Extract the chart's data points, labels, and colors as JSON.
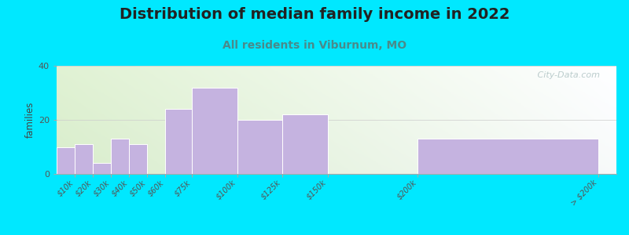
{
  "title": "Distribution of median family income in 2022",
  "subtitle": "All residents in Viburnum, MO",
  "ylabel": "families",
  "bar_color": "#c5b3e0",
  "bar_edgecolor": "#ffffff",
  "background_outer": "#00e8ff",
  "ylim": [
    0,
    40
  ],
  "yticks": [
    0,
    20,
    40
  ],
  "watermark": " City-Data.com",
  "title_fontsize": 14,
  "subtitle_fontsize": 10,
  "subtitle_color": "#4a8a8a",
  "title_color": "#222222",
  "hist_edges": [
    0,
    10,
    20,
    30,
    40,
    50,
    60,
    75,
    100,
    125,
    150,
    200,
    300
  ],
  "hist_values": [
    10,
    11,
    4,
    13,
    11,
    0,
    24,
    32,
    20,
    22,
    0,
    13
  ],
  "tick_labels": [
    "$10k",
    "$20k",
    "$30k",
    "$40k",
    "$50k",
    "$60k",
    "$75k",
    "$100k",
    "$125k",
    "$150k",
    "$200k",
    "> $200k"
  ],
  "tick_positions": [
    10,
    20,
    30,
    40,
    50,
    60,
    75,
    100,
    125,
    150,
    200,
    300
  ]
}
